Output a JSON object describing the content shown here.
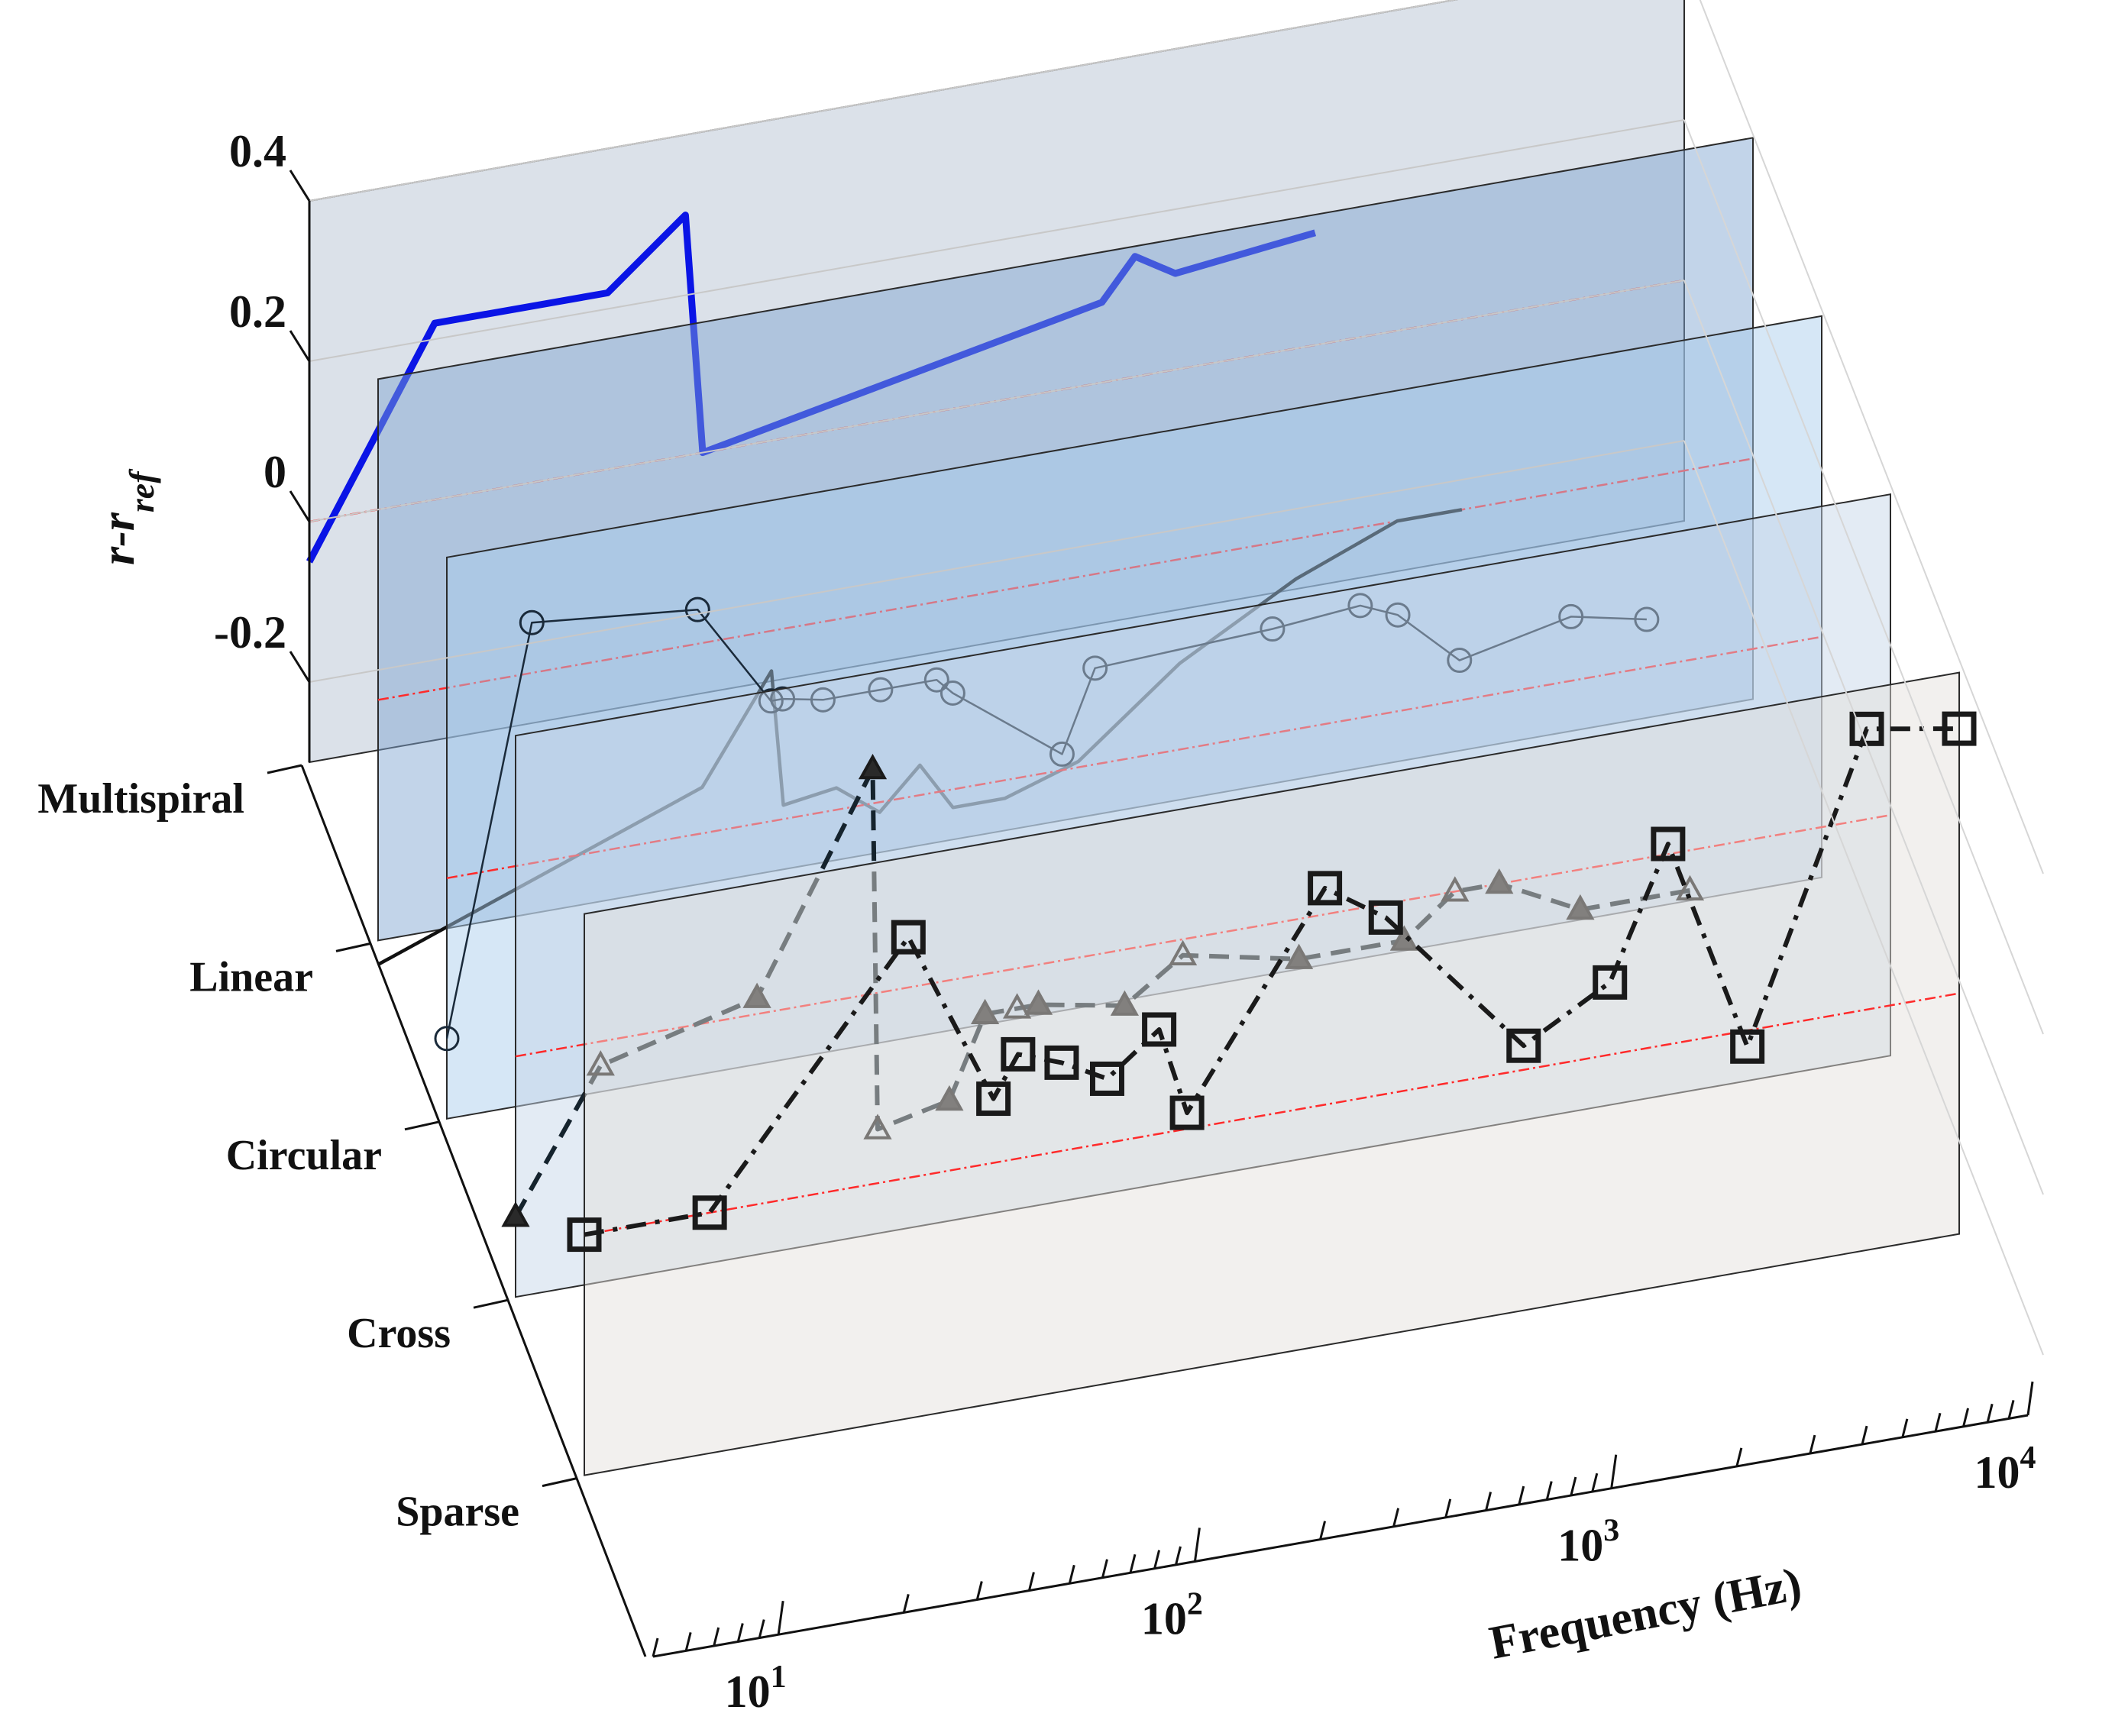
{
  "chart_data": {
    "type": "line",
    "title": "",
    "xlabel": "Frequency (Hz)",
    "ylabel": "r-r_ref",
    "ylabel_main": "r-r",
    "ylabel_sub": "ref",
    "x_scale": "log",
    "xlim": [
      5,
      10000
    ],
    "ylim": [
      -0.3,
      0.4
    ],
    "y_ticks": [
      "0.4",
      "0.2",
      "0",
      "-0.2"
    ],
    "y_tick_values": [
      0.4,
      0.2,
      0,
      -0.2
    ],
    "x_ticks": [
      {
        "base": "10",
        "exp": "1",
        "value": 10
      },
      {
        "base": "10",
        "exp": "2",
        "value": 100
      },
      {
        "base": "10",
        "exp": "3",
        "value": 1000
      },
      {
        "base": "10",
        "exp": "4",
        "value": 10000
      }
    ],
    "categories": [
      "Multispiral",
      "Linear",
      "Circular",
      "Cross",
      "Sparse"
    ],
    "reference_line": {
      "value": 0,
      "color": "#ff2a2a",
      "style": "dash-dot"
    },
    "series": [
      {
        "name": "Multispiral",
        "color": "#0a14e6",
        "line_style": "solid-thick",
        "marker": "none",
        "panel_color": "#b4c0d0",
        "x": [
          5,
          10,
          26,
          40,
          44,
          400,
          480,
          600,
          1300
        ],
        "y": [
          -0.05,
          0.22,
          0.22,
          0.3,
          0.0,
          0.1,
          0.15,
          0.12,
          0.14
        ]
      },
      {
        "name": "Linear",
        "color": "#111111",
        "line_style": "solid",
        "marker": "none",
        "panel_color": "#7fa6d2",
        "x": [
          5,
          30,
          44,
          47,
          63,
          80,
          100,
          120,
          160,
          240,
          420,
          800,
          1400,
          2000
        ],
        "y": [
          -0.33,
          -0.18,
          -0.05,
          -0.22,
          -0.21,
          -0.25,
          -0.2,
          -0.26,
          -0.26,
          -0.23,
          -0.13,
          -0.05,
          0.0,
          0.0
        ]
      },
      {
        "name": "Circular",
        "color": "#1a2a3a",
        "line_style": "solid-thin",
        "marker": "circle-open",
        "panel_color": "#a9cdec",
        "x": [
          5,
          8,
          20,
          30,
          32,
          40,
          55,
          75,
          82,
          150,
          180,
          480,
          780,
          960,
          1350,
          2500,
          3800
        ],
        "y": [
          -0.2,
          0.3,
          0.28,
          0.15,
          0.15,
          0.14,
          0.14,
          0.14,
          0.12,
          0.02,
          0.12,
          0.13,
          0.14,
          0.12,
          0.05,
          0.08,
          0.06
        ]
      },
      {
        "name": "Cross",
        "color": "#15232d",
        "line_style": "dashed",
        "marker": "triangle",
        "panel_color": "#c4d5e8",
        "x": [
          5,
          8,
          19,
          36,
          37,
          55,
          67,
          80,
          90,
          145,
          200,
          380,
          680,
          900,
          1150,
          1800,
          3300
        ],
        "y": [
          -0.2,
          -0.03,
          0.02,
          0.28,
          -0.17,
          -0.15,
          -0.05,
          -0.05,
          -0.05,
          -0.07,
          -0.02,
          -0.05,
          -0.05,
          0.0,
          0.0,
          -0.05,
          -0.05
        ]
      },
      {
        "name": "Sparse",
        "color": "#1a1a1a",
        "line_style": "dash-dot",
        "marker": "square-open",
        "panel_color": "#e4e0dc",
        "x": [
          5,
          10,
          30,
          48,
          55,
          70,
          90,
          120,
          140,
          300,
          420,
          900,
          1450,
          2000,
          3100,
          6000,
          10000
        ],
        "y": [
          0.0,
          0.0,
          0.3,
          0.08,
          0.13,
          0.11,
          0.08,
          0.13,
          0.02,
          0.27,
          0.22,
          0.03,
          0.09,
          0.25,
          -0.02,
          0.35,
          0.33
        ]
      }
    ]
  }
}
